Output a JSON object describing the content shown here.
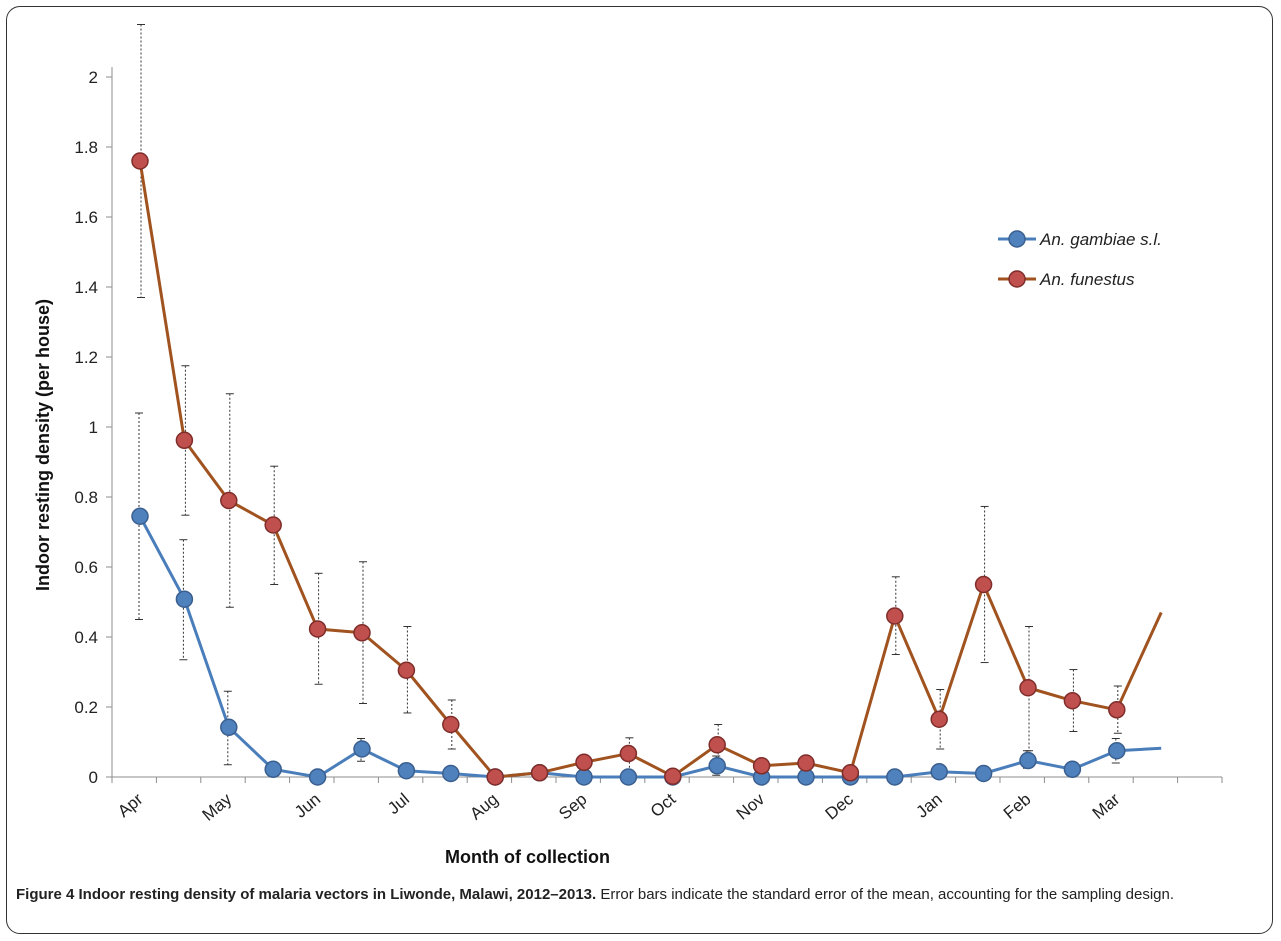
{
  "figure": {
    "caption_bold": "Figure 4 Indoor resting density of malaria vectors in Liwonde, Malawi, 2012–2013.",
    "caption_rest": "Error bars indicate the standard error of the mean, accounting for the sampling design."
  },
  "chart_data": {
    "type": "line",
    "title": "",
    "xlabel": "Month of collection",
    "ylabel": "Indoor resting density (per house)",
    "ylim": [
      0,
      2
    ],
    "yticks": [
      0,
      0.2,
      0.4,
      0.6,
      0.8,
      1,
      1.2,
      1.4,
      1.6,
      1.8,
      2
    ],
    "ytick_labels": [
      "0",
      "0.2",
      "0.4",
      "0.6",
      "0.8",
      "1",
      "1.2",
      "1.4",
      "1.6",
      "1.8",
      "2"
    ],
    "x_points": 25,
    "month_labels": [
      {
        "index": 0,
        "label": "Apr"
      },
      {
        "index": 2,
        "label": "May"
      },
      {
        "index": 4,
        "label": "Jun"
      },
      {
        "index": 6,
        "label": "Jul"
      },
      {
        "index": 8,
        "label": "Aug"
      },
      {
        "index": 10,
        "label": "Sep"
      },
      {
        "index": 12,
        "label": "Oct"
      },
      {
        "index": 14,
        "label": "Nov"
      },
      {
        "index": 16,
        "label": "Dec"
      },
      {
        "index": 18,
        "label": "Jan"
      },
      {
        "index": 20,
        "label": "Feb"
      },
      {
        "index": 22,
        "label": "Mar"
      }
    ],
    "grid": false,
    "legend_position": "right",
    "series": [
      {
        "name": "An. gambiae s.l.",
        "line_color": "#4a7ebb",
        "marker_fill": "#4f81bd",
        "marker_stroke": "#3a5f8f",
        "values": [
          0.745,
          0.508,
          0.142,
          0.022,
          0.0,
          0.08,
          0.018,
          0.01,
          0.0,
          0.012,
          0.0,
          0.0,
          0.0,
          0.032,
          0.0,
          0.0,
          0.0,
          0.0,
          0.015,
          0.01,
          0.047,
          0.022,
          0.075,
          0.082
        ],
        "markers_until": 22,
        "error_low": [
          0.45,
          0.335,
          0.035,
          null,
          null,
          0.045,
          null,
          null,
          null,
          null,
          null,
          null,
          null,
          0.005,
          null,
          null,
          null,
          null,
          null,
          null,
          0.025,
          null,
          0.04
        ],
        "error_high": [
          1.04,
          0.678,
          0.245,
          null,
          null,
          0.11,
          null,
          null,
          null,
          null,
          null,
          null,
          null,
          0.06,
          null,
          null,
          null,
          null,
          null,
          null,
          0.075,
          null,
          0.11
        ]
      },
      {
        "name": "An. funestus",
        "line_color": "#a0521f",
        "marker_fill": "#c0504d",
        "marker_stroke": "#7f2d2a",
        "values": [
          1.76,
          0.962,
          0.79,
          0.72,
          0.423,
          0.412,
          0.305,
          0.15,
          0.0,
          0.012,
          0.042,
          0.067,
          0.002,
          0.092,
          0.032,
          0.04,
          0.012,
          0.46,
          0.165,
          0.55,
          0.255,
          0.218,
          0.192,
          0.47
        ],
        "markers_until": 22,
        "error_low": [
          1.37,
          0.748,
          0.485,
          0.55,
          0.265,
          0.21,
          0.183,
          0.08,
          null,
          null,
          null,
          0.02,
          null,
          0.035,
          null,
          null,
          null,
          0.35,
          0.08,
          0.327,
          0.075,
          0.13,
          0.125
        ],
        "error_high": [
          2.15,
          1.175,
          1.095,
          0.888,
          0.582,
          0.615,
          0.43,
          0.22,
          null,
          null,
          null,
          0.112,
          null,
          0.15,
          null,
          null,
          null,
          0.572,
          0.25,
          0.773,
          0.43,
          0.307,
          0.26
        ]
      }
    ]
  }
}
